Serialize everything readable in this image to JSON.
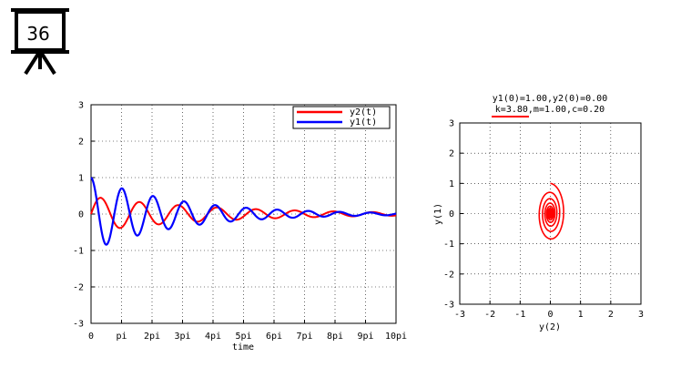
{
  "slide": {
    "number": "36"
  },
  "chart_data": [
    {
      "type": "line",
      "xlabel": "time",
      "ylabel": "",
      "xlim": [
        0,
        31.4159
      ],
      "ylim": [
        -3,
        3
      ],
      "x_ticks": [
        "0",
        "pi",
        "2pi",
        "3pi",
        "4pi",
        "5pi",
        "6pi",
        "7pi",
        "8pi",
        "9pi",
        "10pi"
      ],
      "y_ticks": [
        "3",
        "2",
        "1",
        "0",
        "-1",
        "-2",
        "-3"
      ],
      "grid": true,
      "legend": "top-right",
      "series": [
        {
          "name": "y2(t)",
          "color": "#ff0000",
          "amplitude": 0.48,
          "period": 4.0,
          "decay": 0.075,
          "points": [
            [
              0.0,
              0.0
            ],
            [
              1.0,
              0.48
            ],
            [
              3.0,
              -0.4
            ],
            [
              5.0,
              0.36
            ],
            [
              7.0,
              -0.28
            ],
            [
              9.0,
              0.25
            ],
            [
              15.0,
              0.15
            ],
            [
              20.0,
              -0.11
            ],
            [
              25.0,
              0.08
            ],
            [
              31.4,
              0.0
            ]
          ]
        },
        {
          "name": "y1(t)",
          "color": "#0000ff",
          "amplitude": 1.0,
          "period": 3.2,
          "decay": 0.11,
          "points": [
            [
              0.0,
              1.0
            ],
            [
              1.6,
              -0.85
            ],
            [
              3.2,
              0.73
            ],
            [
              4.8,
              -0.62
            ],
            [
              6.4,
              0.53
            ],
            [
              9.6,
              0.38
            ],
            [
              12.8,
              0.28
            ],
            [
              16.0,
              0.2
            ],
            [
              22.4,
              0.1
            ],
            [
              31.4,
              -0.02
            ]
          ]
        }
      ]
    },
    {
      "type": "line",
      "title": "y1(0)=1.00,y2(0)=0.00",
      "subtitle": "k=3.80,m=1.00,c=0.20",
      "xlabel": "y(2)",
      "ylabel": "y(1)",
      "xlim": [
        -3,
        3
      ],
      "ylim": [
        -3,
        3
      ],
      "x_ticks": [
        "-3",
        "-2",
        "-1",
        "0",
        "1",
        "2",
        "3"
      ],
      "y_ticks": [
        "3",
        "2",
        "1",
        "0",
        "-1",
        "-2",
        "-3"
      ],
      "grid": true,
      "series": [
        {
          "name": "",
          "color": "#ff0000",
          "start": [
            0.0,
            1.0
          ],
          "decay": 0.11,
          "points": [
            [
              0.0,
              1.0
            ],
            [
              0.48,
              0.0
            ],
            [
              0.0,
              -0.85
            ],
            [
              -0.36,
              0.0
            ],
            [
              0.0,
              0.73
            ],
            [
              0.3,
              0.0
            ],
            [
              0.0,
              -0.62
            ],
            [
              0.0,
              0.0
            ]
          ]
        }
      ]
    }
  ]
}
